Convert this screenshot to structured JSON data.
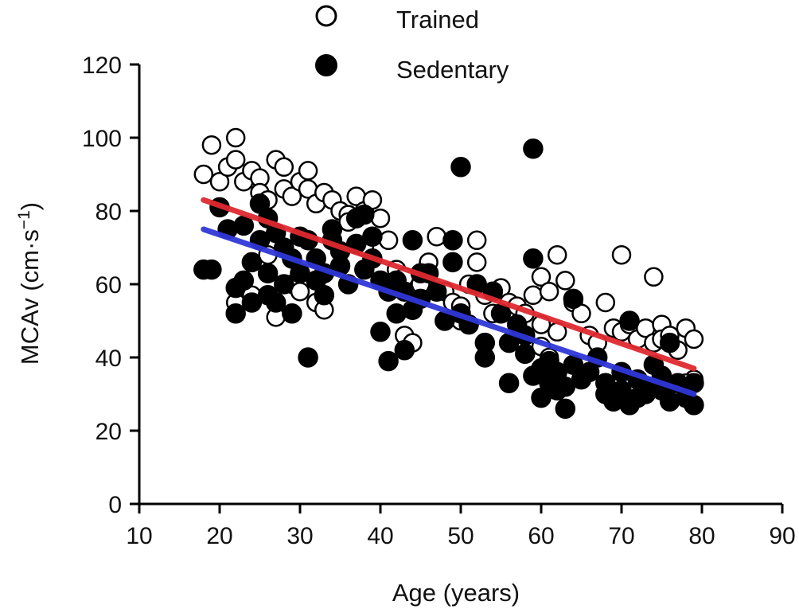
{
  "chart_data": {
    "type": "scatter",
    "title": "",
    "xlabel": "Age (years)",
    "ylabel_main": "MCAv (cm·s",
    "ylabel_sup": "−1",
    "ylabel_close": ")",
    "xlim": [
      10,
      90
    ],
    "ylim": [
      0,
      120
    ],
    "x_ticks": [
      10,
      20,
      30,
      40,
      50,
      60,
      70,
      80,
      90
    ],
    "y_ticks": [
      0,
      20,
      40,
      60,
      80,
      100,
      120
    ],
    "grid": false,
    "legend_position": "top-center",
    "legend": [
      {
        "label": "Trained",
        "marker": "open-circle"
      },
      {
        "label": "Sedentary",
        "marker": "filled-circle"
      }
    ],
    "series": [
      {
        "name": "Trained",
        "marker": "open-circle",
        "color": "#000000",
        "fill": "#ffffff",
        "points": [
          [
            18,
            90
          ],
          [
            19,
            98
          ],
          [
            20,
            88
          ],
          [
            21,
            92
          ],
          [
            22,
            100
          ],
          [
            22,
            94
          ],
          [
            23,
            88
          ],
          [
            24,
            91
          ],
          [
            25,
            89
          ],
          [
            25,
            85
          ],
          [
            26,
            83
          ],
          [
            27,
            94
          ],
          [
            28,
            92
          ],
          [
            28,
            86
          ],
          [
            29,
            84
          ],
          [
            30,
            88
          ],
          [
            31,
            91
          ],
          [
            31,
            86
          ],
          [
            32,
            82
          ],
          [
            33,
            85
          ],
          [
            34,
            83
          ],
          [
            35,
            80
          ],
          [
            36,
            79
          ],
          [
            37,
            84
          ],
          [
            38,
            80
          ],
          [
            39,
            83
          ],
          [
            40,
            78
          ],
          [
            29,
            60
          ],
          [
            30,
            58
          ],
          [
            32,
            55
          ],
          [
            33,
            53
          ],
          [
            24,
            57
          ],
          [
            22,
            55
          ],
          [
            27,
            51
          ],
          [
            26,
            68
          ],
          [
            35,
            65
          ],
          [
            38,
            70
          ],
          [
            36,
            77
          ],
          [
            41,
            72
          ],
          [
            42,
            64
          ],
          [
            43,
            62
          ],
          [
            45,
            60
          ],
          [
            46,
            66
          ],
          [
            47,
            73
          ],
          [
            48,
            58
          ],
          [
            49,
            55
          ],
          [
            50,
            50
          ],
          [
            50,
            54
          ],
          [
            51,
            60
          ],
          [
            52,
            72
          ],
          [
            52,
            66
          ],
          [
            53,
            57
          ],
          [
            54,
            52
          ],
          [
            55,
            59
          ],
          [
            56,
            55
          ],
          [
            57,
            54
          ],
          [
            58,
            52
          ],
          [
            59,
            57
          ],
          [
            60,
            62
          ],
          [
            60,
            49
          ],
          [
            61,
            58
          ],
          [
            62,
            68
          ],
          [
            62,
            47
          ],
          [
            63,
            61
          ],
          [
            64,
            55
          ],
          [
            65,
            52
          ],
          [
            66,
            46
          ],
          [
            67,
            44
          ],
          [
            68,
            55
          ],
          [
            69,
            48
          ],
          [
            70,
            68
          ],
          [
            70,
            47
          ],
          [
            71,
            49
          ],
          [
            72,
            45
          ],
          [
            73,
            48
          ],
          [
            74,
            62
          ],
          [
            74,
            44
          ],
          [
            75,
            49
          ],
          [
            75,
            45
          ],
          [
            76,
            46
          ],
          [
            77,
            42
          ],
          [
            78,
            48
          ],
          [
            79,
            45
          ],
          [
            79,
            34
          ],
          [
            78,
            33
          ],
          [
            43,
            46
          ],
          [
            44,
            44
          ],
          [
            60,
            43
          ],
          [
            61,
            40
          ]
        ]
      },
      {
        "name": "Sedentary",
        "marker": "filled-circle",
        "color": "#000000",
        "fill": "#000000",
        "points": [
          [
            18,
            64
          ],
          [
            19,
            64
          ],
          [
            20,
            81
          ],
          [
            21,
            75
          ],
          [
            22,
            59
          ],
          [
            22,
            52
          ],
          [
            23,
            61
          ],
          [
            24,
            66
          ],
          [
            24,
            55
          ],
          [
            25,
            82
          ],
          [
            25,
            72
          ],
          [
            26,
            57
          ],
          [
            26,
            63
          ],
          [
            27,
            74
          ],
          [
            27,
            55
          ],
          [
            28,
            60
          ],
          [
            28,
            70
          ],
          [
            29,
            52
          ],
          [
            29,
            67
          ],
          [
            30,
            73
          ],
          [
            30,
            63
          ],
          [
            31,
            40
          ],
          [
            31,
            72
          ],
          [
            32,
            61
          ],
          [
            32,
            67
          ],
          [
            33,
            57
          ],
          [
            33,
            63
          ],
          [
            34,
            72
          ],
          [
            35,
            69
          ],
          [
            35,
            65
          ],
          [
            36,
            60
          ],
          [
            37,
            78
          ],
          [
            37,
            71
          ],
          [
            38,
            79
          ],
          [
            38,
            64
          ],
          [
            39,
            73
          ],
          [
            39,
            67
          ],
          [
            40,
            61
          ],
          [
            40,
            47
          ],
          [
            41,
            39
          ],
          [
            41,
            58
          ],
          [
            42,
            52
          ],
          [
            42,
            61
          ],
          [
            43,
            42
          ],
          [
            43,
            58
          ],
          [
            44,
            72
          ],
          [
            44,
            53
          ],
          [
            45,
            56
          ],
          [
            46,
            63
          ],
          [
            47,
            58
          ],
          [
            48,
            50
          ],
          [
            49,
            72
          ],
          [
            49,
            66
          ],
          [
            50,
            92
          ],
          [
            50,
            52
          ],
          [
            51,
            49
          ],
          [
            52,
            60
          ],
          [
            53,
            44
          ],
          [
            53,
            40
          ],
          [
            54,
            58
          ],
          [
            55,
            52
          ],
          [
            56,
            44
          ],
          [
            56,
            33
          ],
          [
            57,
            49
          ],
          [
            58,
            41
          ],
          [
            58,
            46
          ],
          [
            59,
            97
          ],
          [
            59,
            67
          ],
          [
            59,
            35
          ],
          [
            60,
            29
          ],
          [
            60,
            37
          ],
          [
            61,
            39
          ],
          [
            61,
            33
          ],
          [
            62,
            36
          ],
          [
            62,
            31
          ],
          [
            63,
            26
          ],
          [
            63,
            32
          ],
          [
            64,
            56
          ],
          [
            64,
            38
          ],
          [
            65,
            34
          ],
          [
            66,
            36
          ],
          [
            67,
            40
          ],
          [
            68,
            30
          ],
          [
            68,
            33
          ],
          [
            69,
            28
          ],
          [
            70,
            36
          ],
          [
            70,
            31
          ],
          [
            71,
            50
          ],
          [
            71,
            27
          ],
          [
            72,
            34
          ],
          [
            72,
            29
          ],
          [
            73,
            30
          ],
          [
            74,
            38
          ],
          [
            74,
            32
          ],
          [
            75,
            35
          ],
          [
            75,
            31
          ],
          [
            76,
            44
          ],
          [
            76,
            28
          ],
          [
            77,
            33
          ],
          [
            78,
            29
          ],
          [
            79,
            27
          ],
          [
            79,
            33
          ],
          [
            45,
            63
          ],
          [
            34,
            75
          ],
          [
            23,
            76
          ],
          [
            26,
            78
          ]
        ]
      }
    ],
    "fits": [
      {
        "color": "#e02a30",
        "x": [
          18,
          79
        ],
        "y": [
          83,
          37
        ]
      },
      {
        "color": "#2f37d8",
        "x": [
          18,
          79
        ],
        "y": [
          75,
          30
        ]
      }
    ]
  }
}
